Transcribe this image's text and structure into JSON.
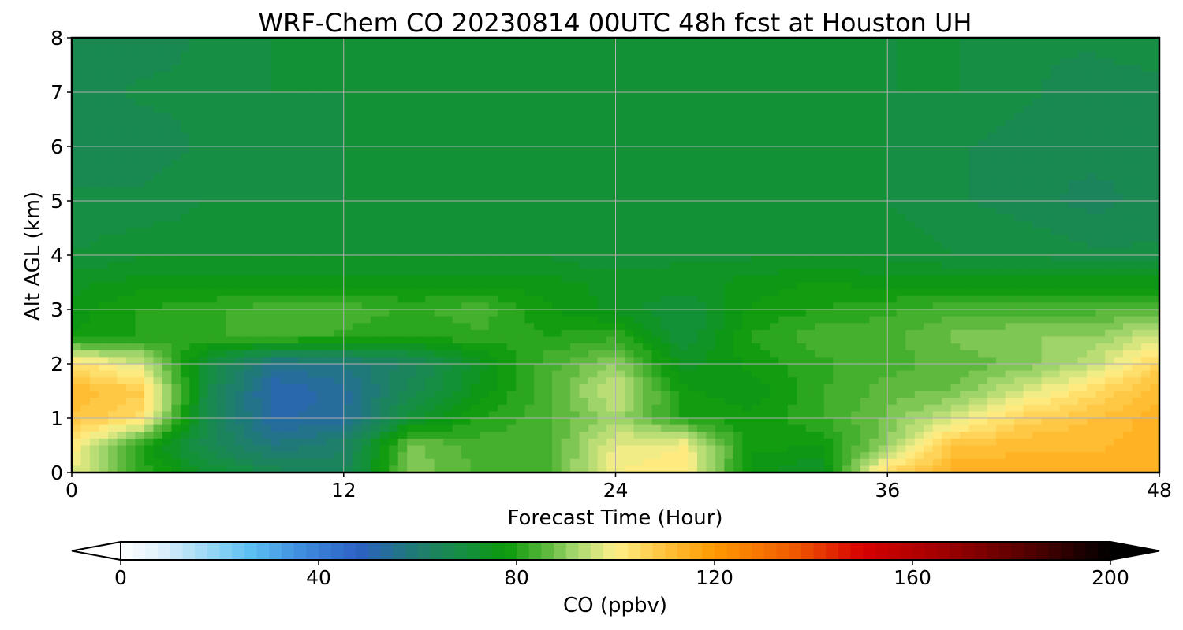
{
  "chart_data": {
    "type": "heatmap",
    "title": "WRF-Chem CO  20230814 00UTC 48h fcst at Houston UH",
    "xlabel": "Forecast Time (Hour)",
    "ylabel": "Alt AGL (km)",
    "xlim": [
      0,
      48
    ],
    "ylim": [
      0,
      8
    ],
    "x_ticks": [
      0,
      12,
      24,
      36,
      48
    ],
    "x_tick_labels": [
      "0",
      "12",
      "24",
      "36",
      "48"
    ],
    "y_ticks": [
      0,
      1,
      2,
      3,
      4,
      5,
      6,
      7,
      8
    ],
    "y_tick_labels": [
      "0",
      "1",
      "2",
      "3",
      "4",
      "5",
      "6",
      "7",
      "8"
    ],
    "grid": true,
    "x": [
      0,
      3,
      6,
      9,
      12,
      15,
      18,
      21,
      24,
      27,
      30,
      33,
      36,
      39,
      42,
      45,
      48
    ],
    "y": [
      0,
      0.5,
      1,
      1.5,
      2,
      2.5,
      3,
      3.5,
      4,
      5,
      6,
      7,
      8
    ],
    "z": [
      [
        98,
        82,
        72,
        66,
        64,
        90,
        84,
        84,
        100,
        102,
        76,
        72,
        106,
        114,
        114,
        114,
        114
      ],
      [
        102,
        80,
        66,
        58,
        62,
        88,
        84,
        84,
        98,
        100,
        78,
        78,
        90,
        110,
        112,
        112,
        114
      ],
      [
        110,
        104,
        66,
        52,
        54,
        72,
        80,
        84,
        92,
        80,
        78,
        82,
        88,
        96,
        106,
        110,
        114
      ],
      [
        112,
        108,
        68,
        50,
        54,
        66,
        76,
        84,
        96,
        78,
        76,
        82,
        86,
        88,
        96,
        104,
        112
      ],
      [
        104,
        96,
        70,
        56,
        58,
        64,
        74,
        84,
        90,
        74,
        78,
        82,
        84,
        86,
        88,
        94,
        106
      ],
      [
        78,
        80,
        82,
        84,
        82,
        80,
        82,
        80,
        82,
        70,
        80,
        84,
        84,
        88,
        90,
        90,
        96
      ],
      [
        76,
        80,
        82,
        84,
        84,
        82,
        84,
        78,
        74,
        70,
        78,
        80,
        82,
        84,
        84,
        84,
        86
      ],
      [
        74,
        76,
        76,
        76,
        76,
        76,
        76,
        76,
        74,
        74,
        76,
        78,
        76,
        76,
        76,
        76,
        76
      ],
      [
        70,
        72,
        72,
        72,
        72,
        72,
        72,
        72,
        70,
        72,
        72,
        72,
        72,
        70,
        70,
        68,
        68
      ],
      [
        68,
        68,
        70,
        70,
        70,
        70,
        70,
        70,
        70,
        70,
        70,
        70,
        70,
        68,
        66,
        64,
        66
      ],
      [
        66,
        66,
        68,
        68,
        70,
        70,
        70,
        70,
        70,
        70,
        70,
        70,
        70,
        68,
        66,
        66,
        66
      ],
      [
        66,
        68,
        68,
        70,
        70,
        70,
        70,
        70,
        70,
        70,
        70,
        70,
        70,
        70,
        68,
        66,
        66
      ],
      [
        66,
        66,
        68,
        70,
        70,
        70,
        70,
        70,
        70,
        70,
        70,
        70,
        70,
        70,
        68,
        68,
        70
      ]
    ],
    "colorbar": {
      "label": "CO  (ppbv)",
      "min": 0,
      "max": 200,
      "ticks": [
        0,
        40,
        80,
        120,
        160,
        200
      ],
      "tick_labels": [
        "0",
        "40",
        "80",
        "120",
        "160",
        "200"
      ],
      "extend": "both",
      "colors": [
        {
          "v": 0,
          "c": "#ffffff"
        },
        {
          "v": 8,
          "c": "#dff1fb"
        },
        {
          "v": 16,
          "c": "#a6dcf6"
        },
        {
          "v": 26,
          "c": "#5ec1f2"
        },
        {
          "v": 36,
          "c": "#3f8fe0"
        },
        {
          "v": 48,
          "c": "#2d60c4"
        },
        {
          "v": 60,
          "c": "#1f7c70"
        },
        {
          "v": 70,
          "c": "#15903e"
        },
        {
          "v": 78,
          "c": "#0a990a"
        },
        {
          "v": 86,
          "c": "#5cb83c"
        },
        {
          "v": 92,
          "c": "#a8d870"
        },
        {
          "v": 100,
          "c": "#fff08a"
        },
        {
          "v": 110,
          "c": "#ffc23a"
        },
        {
          "v": 120,
          "c": "#ff9a00"
        },
        {
          "v": 136,
          "c": "#f05a00"
        },
        {
          "v": 150,
          "c": "#d60000"
        },
        {
          "v": 166,
          "c": "#a00000"
        },
        {
          "v": 182,
          "c": "#5a0000"
        },
        {
          "v": 200,
          "c": "#000000"
        }
      ]
    }
  }
}
